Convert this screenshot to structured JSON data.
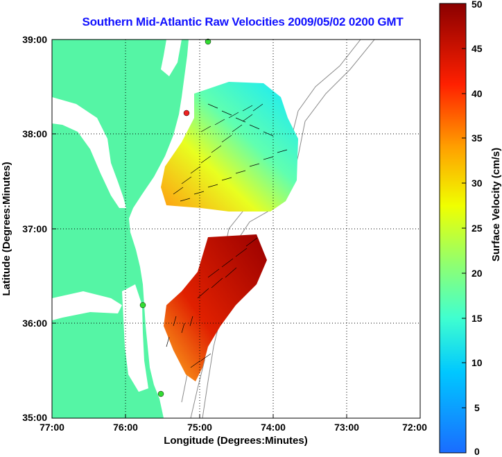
{
  "title": "Southern Mid-Atlantic Raw Velocities 2009/05/02 0200 GMT",
  "map": {
    "xlabel": "Longitude (Degrees:Minutes)",
    "ylabel": "Latitude (Degrees:Minutes)",
    "lon_range": [
      -77,
      -72
    ],
    "lat_range": [
      35,
      39
    ],
    "lon_ticks": [
      "77:00",
      "76:00",
      "75:00",
      "74:00",
      "73:00",
      "72:00"
    ],
    "lat_ticks": [
      "39:00",
      "38:00",
      "37:00",
      "36:00",
      "35:00"
    ],
    "grid": "dotted",
    "land_color": "#55f5a5",
    "stations": [
      {
        "lon": -74.92,
        "lat": 38.99,
        "color": "#33dd33"
      },
      {
        "lon": -75.18,
        "lat": 38.23,
        "color": "#ee2222"
      },
      {
        "lon": -75.72,
        "lat": 36.19,
        "color": "#33dd33"
      },
      {
        "lon": -75.47,
        "lat": 35.25,
        "color": "#33dd33"
      }
    ]
  },
  "colorbar": {
    "label": "Surface Velocity (cm/s)",
    "min": 0,
    "max": 50,
    "ticks": [
      "50",
      "45",
      "40",
      "35",
      "30",
      "25",
      "20",
      "15",
      "10",
      "5",
      "0"
    ]
  }
}
